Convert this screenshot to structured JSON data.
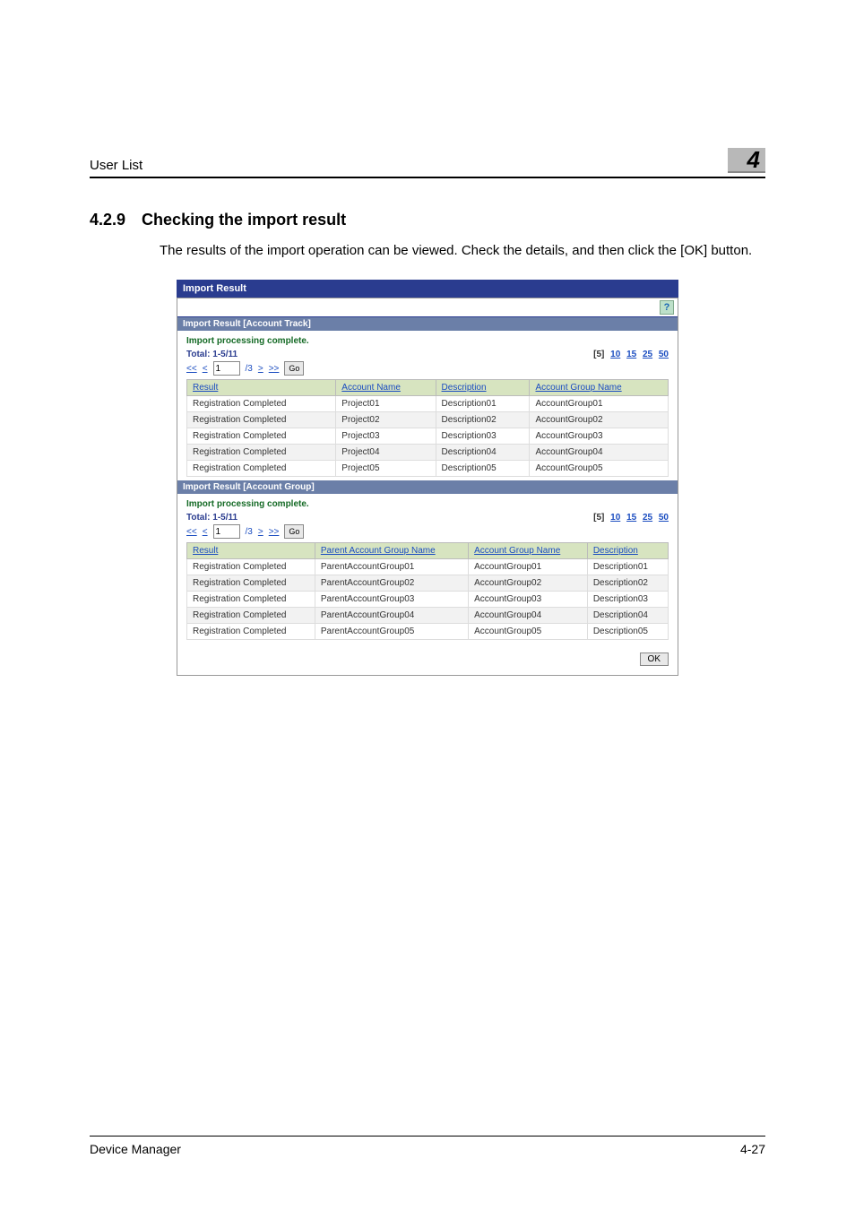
{
  "header": {
    "title": "User List"
  },
  "chapter": "4",
  "section": {
    "number": "4.2.9",
    "title": "Checking the import result",
    "body": "The results of the import operation can be viewed. Check the details, and then click the [OK] button."
  },
  "dialog": {
    "title": "Import Result",
    "help_glyph": "?",
    "track": {
      "header": "Import Result [Account Track]",
      "status": "Import processing complete.",
      "total_label": "Total:",
      "total_value": "1-5/11",
      "pager": {
        "first": "<<",
        "prev": "<",
        "value": "1",
        "total": "/3",
        "next": ">",
        "last": ">>",
        "go": "Go"
      },
      "sizes": {
        "s5": "[5]",
        "s10": "10",
        "s15": "15",
        "s25": "25",
        "s50": "50"
      },
      "columns": {
        "result": "Result",
        "account": "Account Name",
        "desc": "Description",
        "group": "Account Group Name"
      },
      "rows": [
        {
          "r": "Registration Completed",
          "a": "Project01",
          "d": "Description01",
          "g": "AccountGroup01"
        },
        {
          "r": "Registration Completed",
          "a": "Project02",
          "d": "Description02",
          "g": "AccountGroup02"
        },
        {
          "r": "Registration Completed",
          "a": "Project03",
          "d": "Description03",
          "g": "AccountGroup03"
        },
        {
          "r": "Registration Completed",
          "a": "Project04",
          "d": "Description04",
          "g": "AccountGroup04"
        },
        {
          "r": "Registration Completed",
          "a": "Project05",
          "d": "Description05",
          "g": "AccountGroup05"
        }
      ]
    },
    "group": {
      "header": "Import Result [Account Group]",
      "status": "Import processing complete.",
      "total_label": "Total:",
      "total_value": "1-5/11",
      "pager": {
        "first": "<<",
        "prev": "<",
        "value": "1",
        "total": "/3",
        "next": ">",
        "last": ">>",
        "go": "Go"
      },
      "sizes": {
        "s5": "[5]",
        "s10": "10",
        "s15": "15",
        "s25": "25",
        "s50": "50"
      },
      "columns": {
        "result": "Result",
        "parent": "Parent Account Group Name",
        "group": "Account Group Name",
        "desc": "Description"
      },
      "rows": [
        {
          "r": "Registration Completed",
          "p": "ParentAccountGroup01",
          "g": "AccountGroup01",
          "d": "Description01"
        },
        {
          "r": "Registration Completed",
          "p": "ParentAccountGroup02",
          "g": "AccountGroup02",
          "d": "Description02"
        },
        {
          "r": "Registration Completed",
          "p": "ParentAccountGroup03",
          "g": "AccountGroup03",
          "d": "Description03"
        },
        {
          "r": "Registration Completed",
          "p": "ParentAccountGroup04",
          "g": "AccountGroup04",
          "d": "Description04"
        },
        {
          "r": "Registration Completed",
          "p": "ParentAccountGroup05",
          "g": "AccountGroup05",
          "d": "Description05"
        }
      ]
    },
    "ok": "OK"
  },
  "footer": {
    "left": "Device Manager",
    "right": "4-27"
  }
}
